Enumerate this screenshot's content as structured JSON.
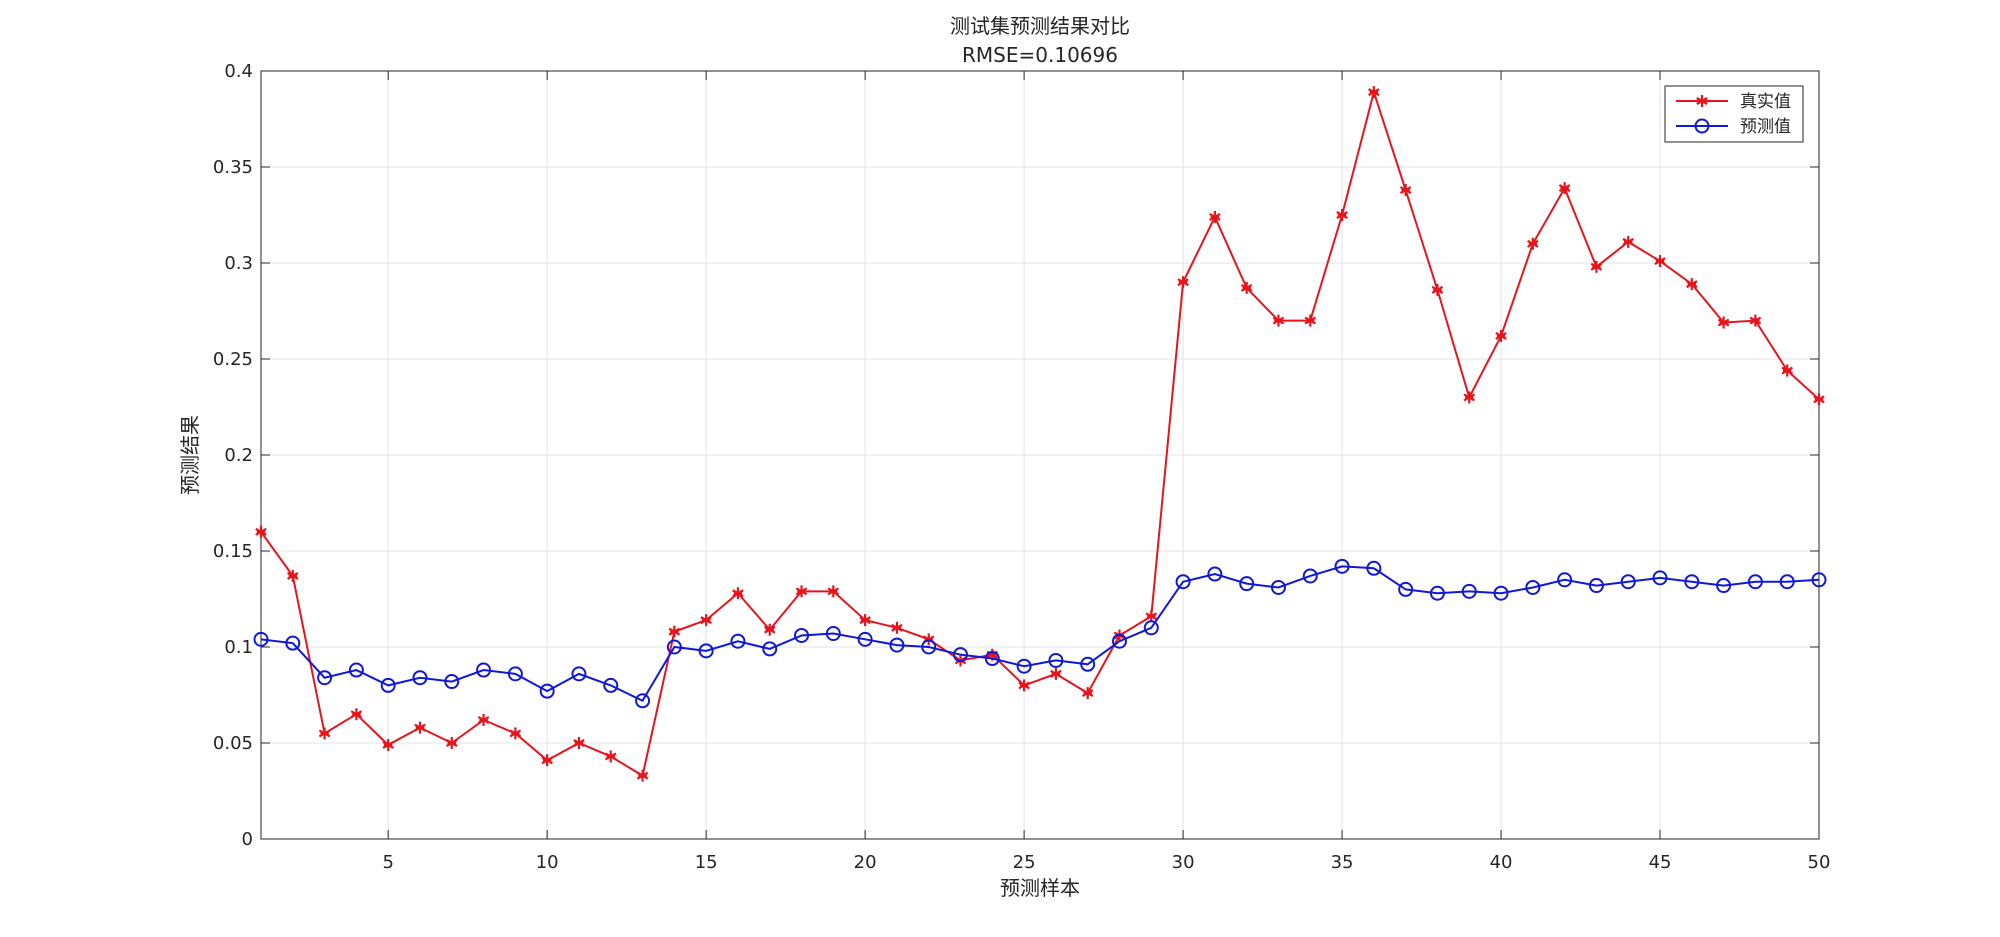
{
  "chart_data": {
    "type": "line",
    "title": "测试集预测结果对比",
    "subtitle": "RMSE=0.10696",
    "xlabel": "预测样本",
    "ylabel": "预测结果",
    "xlim": [
      1,
      50
    ],
    "ylim": [
      0,
      0.4
    ],
    "xticks": [
      5,
      10,
      15,
      20,
      25,
      30,
      35,
      40,
      45,
      50
    ],
    "yticks": [
      0,
      0.05,
      0.1,
      0.15,
      0.2,
      0.25,
      0.3,
      0.35,
      0.4
    ],
    "ytick_labels": [
      "0",
      "0.05",
      "0.1",
      "0.15",
      "0.2",
      "0.25",
      "0.3",
      "0.35",
      "0.4"
    ],
    "grid": true,
    "legend_position": "top-right",
    "x": [
      1,
      2,
      3,
      4,
      5,
      6,
      7,
      8,
      9,
      10,
      11,
      12,
      13,
      14,
      15,
      16,
      17,
      18,
      19,
      20,
      21,
      22,
      23,
      24,
      25,
      26,
      27,
      28,
      29,
      30,
      31,
      32,
      33,
      34,
      35,
      36,
      37,
      38,
      39,
      40,
      41,
      42,
      43,
      44,
      45,
      46,
      47,
      48,
      49,
      50
    ],
    "series": [
      {
        "name": "真实值",
        "color": "#e8141c",
        "marker": "asterisk",
        "values": [
          0.16,
          0.137,
          0.055,
          0.065,
          0.049,
          0.058,
          0.05,
          0.062,
          0.055,
          0.041,
          0.05,
          0.043,
          0.033,
          0.108,
          0.114,
          0.128,
          0.109,
          0.129,
          0.129,
          0.114,
          0.11,
          0.104,
          0.093,
          0.096,
          0.08,
          0.086,
          0.076,
          0.106,
          0.116,
          0.29,
          0.324,
          0.287,
          0.27,
          0.27,
          0.325,
          0.389,
          0.338,
          0.286,
          0.23,
          0.262,
          0.31,
          0.339,
          0.298,
          0.311,
          0.301,
          0.289,
          0.269,
          0.27,
          0.244,
          0.229
        ]
      },
      {
        "name": "预测值",
        "color": "#1018d8",
        "marker": "circle",
        "values": [
          0.104,
          0.102,
          0.084,
          0.088,
          0.08,
          0.084,
          0.082,
          0.088,
          0.086,
          0.077,
          0.086,
          0.08,
          0.072,
          0.1,
          0.098,
          0.103,
          0.099,
          0.106,
          0.107,
          0.104,
          0.101,
          0.1,
          0.096,
          0.094,
          0.09,
          0.093,
          0.091,
          0.103,
          0.11,
          0.134,
          0.138,
          0.133,
          0.131,
          0.137,
          0.142,
          0.141,
          0.13,
          0.128,
          0.129,
          0.128,
          0.131,
          0.135,
          0.132,
          0.134,
          0.136,
          0.134,
          0.132,
          0.134,
          0.134,
          0.135
        ]
      }
    ]
  }
}
